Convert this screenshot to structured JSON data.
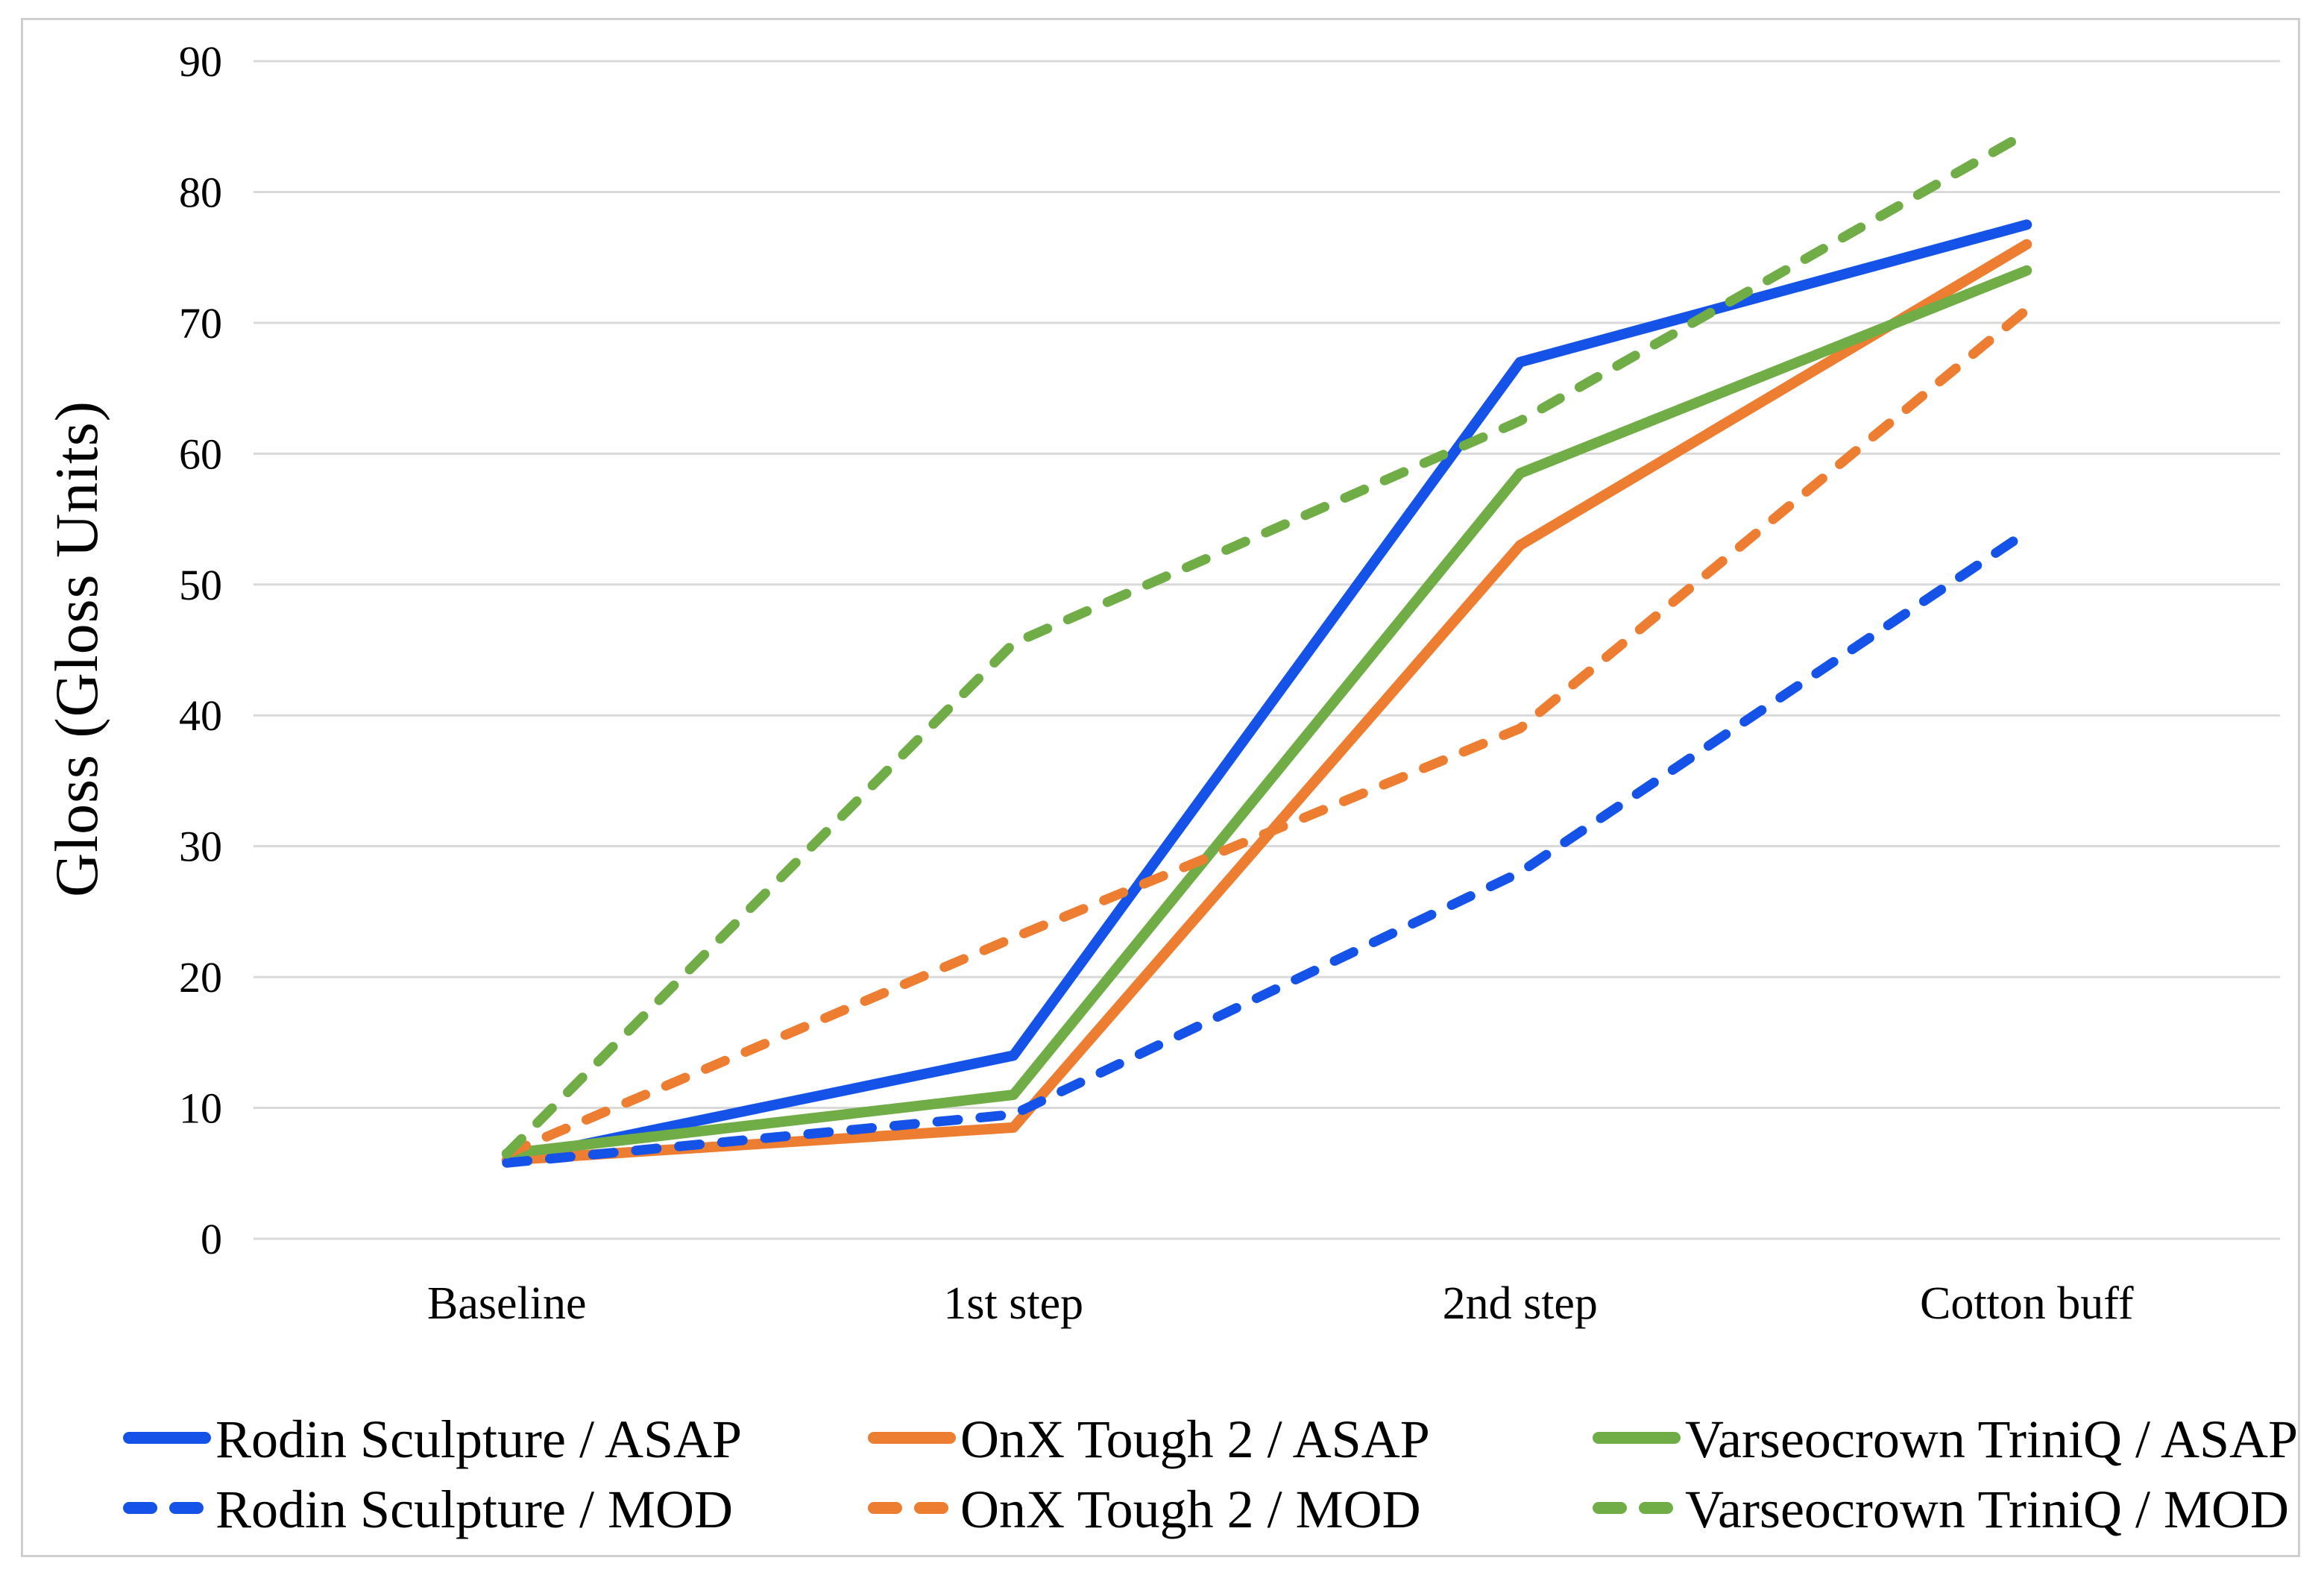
{
  "figure": {
    "background_color": "#ffffff",
    "border_color": "#cfcfcf"
  },
  "chart_data": {
    "type": "line",
    "title": "",
    "xlabel": "",
    "ylabel": "Gloss (Gloss Units)",
    "categories": [
      "Baseline",
      "1st step",
      "2nd step",
      "Cotton buff"
    ],
    "ylim": [
      0,
      90
    ],
    "ytick_step": 10,
    "ytick_labels": [
      "0",
      "10",
      "20",
      "30",
      "40",
      "50",
      "60",
      "70",
      "80",
      "90"
    ],
    "grid": "horizontal",
    "grid_color": "#d9d9d9",
    "legend_position": "bottom",
    "legend_columns": 3,
    "series": [
      {
        "name": "Rodin Sculpture / ASAP",
        "color": "#1553e8",
        "style": "solid",
        "values": [
          6.0,
          14.0,
          67.0,
          77.5
        ]
      },
      {
        "name": "OnX Tough 2 / ASAP",
        "color": "#ed7d31",
        "style": "solid",
        "values": [
          6.0,
          8.5,
          53.0,
          76.0
        ]
      },
      {
        "name": "Varseocrown TriniQ / ASAP",
        "color": "#70ad47",
        "style": "solid",
        "values": [
          6.5,
          11.0,
          58.5,
          74.0
        ]
      },
      {
        "name": "Rodin Sculpture / MOD",
        "color": "#1553e8",
        "style": "dashed",
        "values": [
          5.8,
          9.5,
          28.0,
          54.0
        ]
      },
      {
        "name": "OnX Tough 2 / MOD",
        "color": "#ed7d31",
        "style": "dashed",
        "values": [
          6.5,
          23.0,
          39.0,
          71.0
        ]
      },
      {
        "name": "Varseocrown TriniQ / MOD",
        "color": "#70ad47",
        "style": "dashed",
        "values": [
          6.5,
          45.5,
          62.5,
          84.5
        ]
      }
    ]
  }
}
